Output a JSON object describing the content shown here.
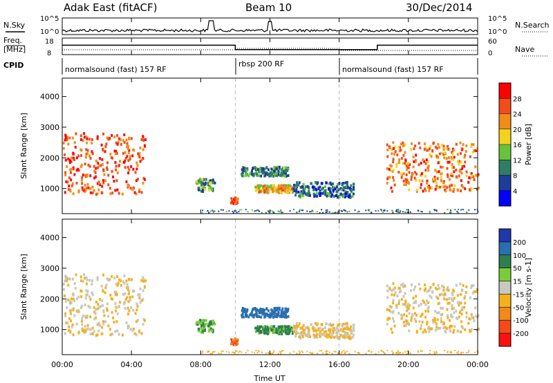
{
  "header": {
    "radar": "Adak East (fitACF)",
    "beam": "Beam 10",
    "date": "30/Dec/2014"
  },
  "top_panel": {
    "left_label": "N.Sky",
    "right_label": "N.Search",
    "left_ticks": [
      "10^5",
      "10^0"
    ],
    "right_ticks": [
      "10^5",
      "10^0"
    ]
  },
  "freq_panel": {
    "left_label_line1": "Freq.",
    "left_label_line2": "[MHz]",
    "right_label": "Nave",
    "left_ticks": [
      "18",
      "8"
    ],
    "right_ticks": [
      "60",
      "0"
    ]
  },
  "cpid": {
    "label": "CPID",
    "modes": [
      "normalsound (fast) 157 RF",
      "rbsp 200 RF",
      "normalsound (fast) 157 RF"
    ]
  },
  "power_panel": {
    "ylabel": "Slant Range [km]",
    "yticks": [
      "4000",
      "3000",
      "2000",
      "1000"
    ],
    "colorbar_label": "Power [dB]",
    "colorbar_ticks": [
      "28",
      "24",
      "20",
      "16",
      "12",
      "8",
      "4"
    ],
    "colors": [
      "#0000ff",
      "#1e3c9c",
      "#2f7e63",
      "#66c33b",
      "#f2d21d",
      "#f28c1a",
      "#f24c1a",
      "#ff0000"
    ]
  },
  "velocity_panel": {
    "ylabel": "Slant Range [km]",
    "yticks": [
      "4000",
      "3000",
      "2000",
      "1000"
    ],
    "colorbar_label": "Velocity [m s-1]",
    "colorbar_ticks": [
      "200",
      "100",
      "50",
      "15",
      "-15",
      "-50",
      "-100",
      "-200"
    ],
    "colors": [
      "#1f39a8",
      "#2a6fb0",
      "#2d7f4e",
      "#7ccc3a",
      "#c8c8c0",
      "#f5b01d",
      "#f28a1a",
      "#f24c1a",
      "#ff1010"
    ]
  },
  "xaxis": {
    "label": "Time UT",
    "ticks": [
      "00:00",
      "04:00",
      "08:00",
      "12:00",
      "16:00",
      "20:00",
      "00:00"
    ]
  },
  "chart_data": {
    "type": "heatmap",
    "x_range_hours": [
      0,
      24
    ],
    "y_range_km": [
      180,
      4600
    ],
    "cpid_boundaries_hours": [
      10,
      16
    ],
    "freq_mhz": [
      {
        "start": 0,
        "end": 10,
        "value": 14
      },
      {
        "start": 10,
        "end": 18.2,
        "value": 11
      },
      {
        "start": 18.2,
        "end": 24,
        "value": 14
      }
    ],
    "echo_regions": [
      {
        "t": [
          0,
          4.8
        ],
        "r": [
          800,
          2800
        ],
        "power": 26,
        "velocity": -15
      },
      {
        "t": [
          7.7,
          8.8
        ],
        "r": [
          900,
          1300
        ],
        "power": 12,
        "velocity": 50
      },
      {
        "t": [
          9.7,
          10.1
        ],
        "r": [
          500,
          700
        ],
        "power": 26,
        "velocity": -100
      },
      {
        "t": [
          10.3,
          13.0
        ],
        "r": [
          1400,
          1700
        ],
        "power": 10,
        "velocity": 150
      },
      {
        "t": [
          11.0,
          13.3
        ],
        "r": [
          850,
          1100
        ],
        "power": 20,
        "velocity": 60
      },
      {
        "t": [
          13.3,
          16.8
        ],
        "r": [
          700,
          1200
        ],
        "power": 8,
        "velocity": -15
      },
      {
        "t": [
          18.7,
          24
        ],
        "r": [
          900,
          2500
        ],
        "power": 24,
        "velocity": -15
      }
    ]
  }
}
